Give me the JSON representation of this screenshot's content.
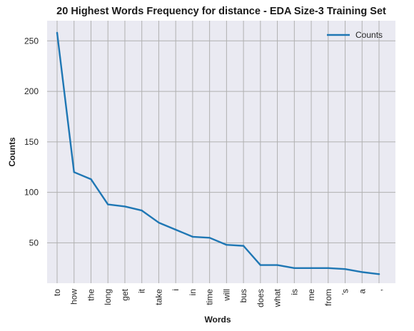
{
  "chart_data": {
    "type": "line",
    "title": "20 Highest Words Frequency for distance - EDA Size-3 Training Set",
    "xlabel": "Words",
    "ylabel": "Counts",
    "categories": [
      "to",
      "how",
      "the",
      "long",
      "get",
      "it",
      "take",
      "i",
      "in",
      "time",
      "will",
      "bus",
      "does",
      "what",
      "is",
      "me",
      "from",
      "'s",
      "a",
      ","
    ],
    "series": [
      {
        "name": "Counts",
        "values": [
          258,
          120,
          113,
          88,
          86,
          82,
          70,
          63,
          56,
          55,
          48,
          47,
          28,
          28,
          25,
          25,
          25,
          24,
          21,
          19
        ]
      }
    ],
    "ylim": [
      10,
      270
    ],
    "yticks": [
      50,
      100,
      150,
      200,
      250
    ],
    "grid": true,
    "legend_position": "top-right",
    "colors": {
      "line": "#1f77b4",
      "plot_background": "#eaeaf2",
      "grid": "#b0b0b0"
    }
  }
}
